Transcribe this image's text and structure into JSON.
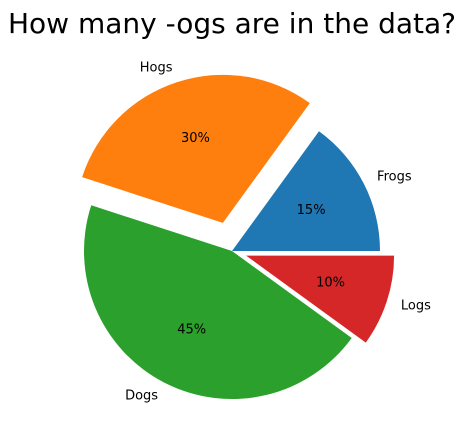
{
  "chart_data": {
    "type": "pie",
    "title": "How many -ogs are in the data?",
    "categories": [
      "Frogs",
      "Hogs",
      "Dogs",
      "Logs"
    ],
    "values": [
      15,
      30,
      45,
      10
    ],
    "percent_labels": [
      "15%",
      "30%",
      "45%",
      "10%"
    ],
    "explode": [
      0,
      0.2,
      0,
      0.1
    ],
    "colors": [
      "#1f77b4",
      "#ff7f0e",
      "#2ca02c",
      "#d62728"
    ],
    "start_angle": 0,
    "direction": "counterclockwise",
    "legend": "none"
  }
}
